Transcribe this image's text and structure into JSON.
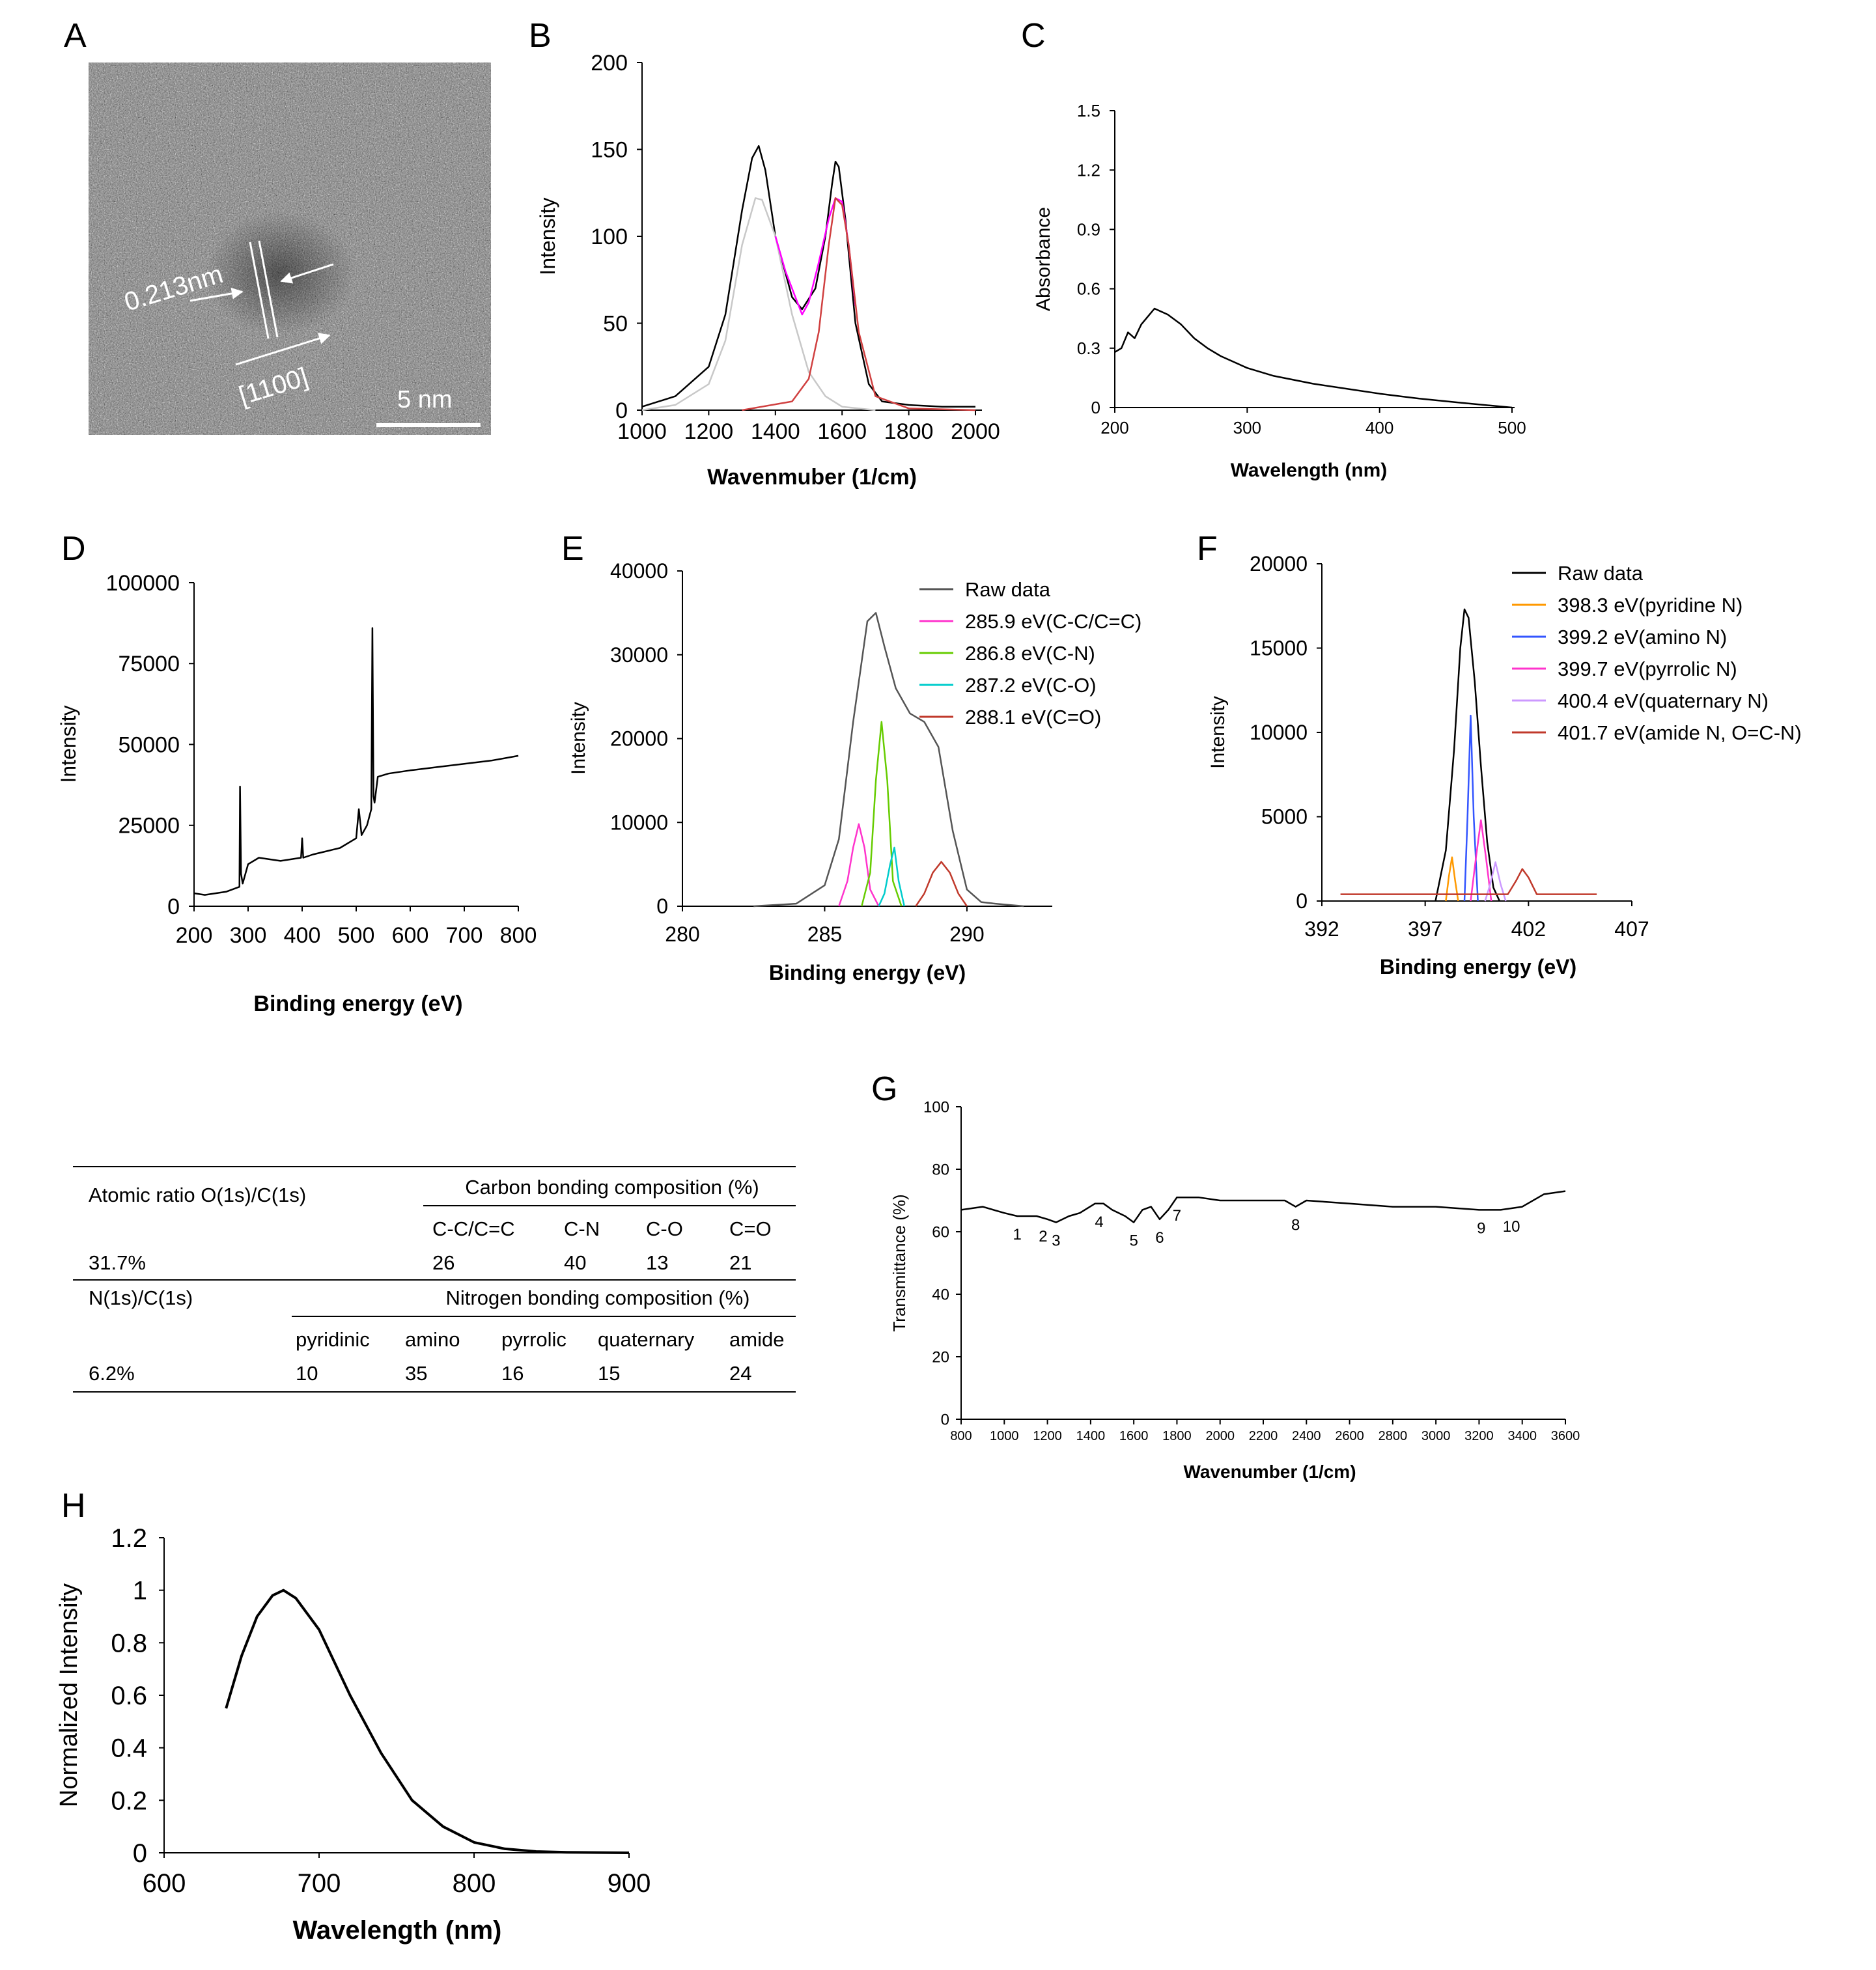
{
  "panel_letters": [
    "A",
    "B",
    "C",
    "D",
    "E",
    "F",
    "G",
    "H"
  ],
  "tem": {
    "spacing_label": "0.213nm",
    "direction_label": "[1100]",
    "scale_label": "5 nm"
  },
  "table": {
    "atomic_ratio_label": "Atomic ratio O(1s)/C(1s)",
    "carbon_header": "Carbon bonding composition (%)",
    "carbon_cols": [
      "C-C/C=C",
      "C-N",
      "C-O",
      "C=O"
    ],
    "atomic_ratio_value": "31.7%",
    "carbon_values": [
      "26",
      "40",
      "13",
      "21"
    ],
    "n_ratio_label": "N(1s)/C(1s)",
    "nitrogen_header": "Nitrogen bonding composition (%)",
    "nitrogen_cols": [
      "pyridinic",
      "amino",
      "pyrrolic",
      "quaternary",
      "amide"
    ],
    "n_ratio_value": "6.2%",
    "nitrogen_values": [
      "10",
      "35",
      "16",
      "15",
      "24"
    ]
  },
  "chart_data": [
    {
      "panel": "B",
      "type": "line",
      "xlabel": "Wavenmuber (1/cm)",
      "ylabel": "Intensity",
      "xlim": [
        1000,
        2000
      ],
      "ylim": [
        0,
        200
      ],
      "xticks": [
        1000,
        1200,
        1400,
        1600,
        1800,
        2000
      ],
      "yticks": [
        0,
        50,
        100,
        150,
        200
      ],
      "series": [
        {
          "color": "#000000",
          "x": [
            1000,
            1100,
            1200,
            1250,
            1300,
            1330,
            1350,
            1370,
            1400,
            1450,
            1480,
            1520,
            1550,
            1570,
            1580,
            1590,
            1610,
            1640,
            1680,
            1720,
            1800,
            1900,
            2000
          ],
          "y": [
            2,
            8,
            25,
            55,
            115,
            145,
            152,
            138,
            100,
            65,
            58,
            70,
            100,
            130,
            143,
            140,
            110,
            50,
            15,
            5,
            3,
            2,
            2
          ]
        },
        {
          "color": "#c8c8c8",
          "x": [
            1000,
            1100,
            1200,
            1250,
            1300,
            1340,
            1360,
            1400,
            1450,
            1500,
            1550,
            1600,
            1700
          ],
          "y": [
            0,
            3,
            15,
            40,
            95,
            122,
            121,
            100,
            55,
            22,
            8,
            2,
            0
          ]
        },
        {
          "color": "#ff00ff",
          "x": [
            1400,
            1430,
            1460,
            1480,
            1500,
            1530,
            1560,
            1580,
            1600,
            1620,
            1640
          ],
          "y": [
            100,
            80,
            65,
            55,
            62,
            85,
            110,
            122,
            120,
            95,
            60
          ]
        },
        {
          "color": "#d04040",
          "x": [
            1300,
            1450,
            1500,
            1530,
            1560,
            1580,
            1600,
            1620,
            1650,
            1700,
            1800,
            2000
          ],
          "y": [
            0,
            5,
            18,
            45,
            95,
            122,
            118,
            95,
            45,
            8,
            1,
            0
          ]
        }
      ]
    },
    {
      "panel": "C",
      "type": "line",
      "xlabel": "Wavelength (nm)",
      "ylabel": "Absorbance",
      "xlim": [
        200,
        500
      ],
      "ylim": [
        0,
        1.5
      ],
      "xticks": [
        200,
        300,
        400,
        500
      ],
      "yticks": [
        "0",
        "0.3",
        "0.6",
        "0.9",
        "1.2",
        "1.5"
      ],
      "series": [
        {
          "color": "#000000",
          "x": [
            200,
            205,
            210,
            215,
            220,
            225,
            230,
            240,
            250,
            260,
            270,
            280,
            300,
            320,
            350,
            380,
            400,
            430,
            460,
            500
          ],
          "y": [
            0.28,
            0.3,
            0.38,
            0.35,
            0.42,
            0.46,
            0.5,
            0.47,
            0.42,
            0.35,
            0.3,
            0.26,
            0.2,
            0.16,
            0.12,
            0.09,
            0.07,
            0.045,
            0.025,
            0.0
          ]
        }
      ]
    },
    {
      "panel": "D",
      "type": "line",
      "xlabel": "Binding energy (eV)",
      "ylabel": "Intensity",
      "xlim": [
        200,
        800
      ],
      "ylim": [
        0,
        100000
      ],
      "xticks": [
        200,
        300,
        400,
        500,
        600,
        700,
        800
      ],
      "yticks": [
        0,
        25000,
        50000,
        75000,
        100000
      ],
      "series": [
        {
          "color": "#000000",
          "x": [
            200,
            220,
            260,
            284,
            285,
            287,
            290,
            300,
            320,
            360,
            398,
            400,
            402,
            420,
            470,
            500,
            505,
            510,
            520,
            528,
            530,
            532,
            534,
            540,
            560,
            600,
            650,
            700,
            750,
            800
          ],
          "y": [
            4000,
            3500,
            4500,
            6000,
            37000,
            10000,
            7000,
            13000,
            15000,
            14000,
            15000,
            21000,
            15000,
            16000,
            18000,
            21000,
            30000,
            22000,
            25000,
            30000,
            86000,
            34000,
            32000,
            40000,
            41000,
            42000,
            43000,
            44000,
            45000,
            46500
          ]
        }
      ]
    },
    {
      "panel": "E",
      "type": "line",
      "xlabel": "Binding energy (eV)",
      "ylabel": "Intensity",
      "xlim": [
        280,
        293
      ],
      "ylim": [
        0,
        40000
      ],
      "xticks": [
        280,
        285,
        290
      ],
      "yticks": [
        0,
        10000,
        20000,
        30000,
        40000
      ],
      "series": [
        {
          "name": "Raw data",
          "color": "#555555",
          "x": [
            282.5,
            284,
            285,
            285.5,
            286,
            286.5,
            286.8,
            287.1,
            287.5,
            288,
            288.5,
            289,
            289.5,
            290,
            290.5,
            291,
            292
          ],
          "y": [
            0,
            300,
            2500,
            8000,
            22000,
            34000,
            35000,
            31000,
            26000,
            23000,
            22000,
            19000,
            9000,
            2000,
            500,
            300,
            0
          ]
        },
        {
          "name": "285.9 eV(C-C/C=C)",
          "color": "#ff33cc",
          "x": [
            285.5,
            285.8,
            286.0,
            286.2,
            286.4,
            286.6,
            286.9
          ],
          "y": [
            0,
            3000,
            7000,
            9800,
            7000,
            2000,
            0
          ]
        },
        {
          "name": "286.8 eV(C-N)",
          "color": "#66cc00",
          "x": [
            286.3,
            286.6,
            286.8,
            287.0,
            287.2,
            287.4,
            287.7
          ],
          "y": [
            0,
            4000,
            15000,
            22000,
            15000,
            3000,
            0
          ]
        },
        {
          "name": "287.2 eV(C-O)",
          "color": "#00cccc",
          "x": [
            286.9,
            287.1,
            287.3,
            287.45,
            287.6,
            287.8
          ],
          "y": [
            0,
            1500,
            5000,
            7000,
            3000,
            0
          ]
        },
        {
          "name": "288.1 eV(C=O)",
          "color": "#c0392b",
          "x": [
            288.2,
            288.5,
            288.8,
            289.1,
            289.4,
            289.7,
            290.0
          ],
          "y": [
            0,
            1500,
            4000,
            5300,
            4000,
            1500,
            0
          ]
        }
      ]
    },
    {
      "panel": "F",
      "type": "line",
      "xlabel": "Binding energy (eV)",
      "ylabel": "Intensity",
      "xlim": [
        392,
        407
      ],
      "ylim": [
        0,
        20000
      ],
      "xticks": [
        392,
        397,
        402,
        407
      ],
      "yticks": [
        0,
        5000,
        10000,
        15000,
        20000
      ],
      "series": [
        {
          "name": "Raw data",
          "color": "#000000",
          "x": [
            397.5,
            398,
            398.4,
            398.7,
            398.9,
            399.1,
            399.4,
            399.7,
            400.0,
            400.3,
            400.6
          ],
          "y": [
            0,
            3000,
            9000,
            15000,
            17300,
            16800,
            13000,
            8000,
            3500,
            800,
            0
          ]
        },
        {
          "name": "398.3 eV(pyridine N)",
          "color": "#ff9900",
          "x": [
            398.0,
            398.15,
            398.3,
            398.45,
            398.6
          ],
          "y": [
            0,
            1500,
            2600,
            1200,
            0
          ]
        },
        {
          "name": "399.2 eV(amino N)",
          "color": "#3355ff",
          "x": [
            398.9,
            399.05,
            399.2,
            399.35,
            399.55
          ],
          "y": [
            0,
            5000,
            11000,
            5000,
            0
          ]
        },
        {
          "name": "399.7 eV(pyrrolic N)",
          "color": "#ff33cc",
          "x": [
            399.2,
            399.45,
            399.7,
            399.95,
            400.2
          ],
          "y": [
            0,
            2500,
            4800,
            2500,
            0
          ]
        },
        {
          "name": "400.4 eV(quaternary N)",
          "color": "#cc99ff",
          "x": [
            399.9,
            400.15,
            400.4,
            400.65,
            400.9
          ],
          "y": [
            0,
            1000,
            2300,
            1000,
            0
          ]
        },
        {
          "name": "401.7 eV(amide N, O=C-N)",
          "color": "#c0392b",
          "x": [
            392.9,
            401.0,
            401.4,
            401.7,
            402.0,
            402.4,
            405.3
          ],
          "y": [
            400,
            400,
            1200,
            1900,
            1400,
            400,
            400
          ]
        }
      ]
    },
    {
      "panel": "G",
      "type": "line",
      "xlabel": "Wavenumber (1/cm)",
      "ylabel": "Transmittance (%)",
      "xlim": [
        800,
        3600
      ],
      "ylim": [
        0,
        100
      ],
      "xticks": [
        800,
        1000,
        1200,
        1400,
        1600,
        1800,
        2000,
        2200,
        2400,
        2600,
        2800,
        3000,
        3200,
        3400,
        3600
      ],
      "yticks": [
        0,
        20,
        40,
        60,
        80,
        100
      ],
      "peak_labels": [
        {
          "label": "1",
          "x": 1060
        },
        {
          "label": "2",
          "x": 1180
        },
        {
          "label": "3",
          "x": 1240
        },
        {
          "label": "4",
          "x": 1440
        },
        {
          "label": "5",
          "x": 1600
        },
        {
          "label": "6",
          "x": 1720
        },
        {
          "label": "7",
          "x": 1800
        },
        {
          "label": "8",
          "x": 2350
        },
        {
          "label": "9",
          "x": 3210
        },
        {
          "label": "10",
          "x": 3350
        }
      ],
      "series": [
        {
          "color": "#000000",
          "x": [
            800,
            900,
            1000,
            1060,
            1150,
            1200,
            1240,
            1300,
            1350,
            1420,
            1460,
            1500,
            1560,
            1600,
            1640,
            1680,
            1720,
            1760,
            1800,
            1900,
            2000,
            2200,
            2300,
            2350,
            2400,
            2600,
            2800,
            3000,
            3200,
            3300,
            3400,
            3500,
            3600
          ],
          "y": [
            67,
            68,
            66,
            65,
            65,
            64,
            63,
            65,
            66,
            69,
            69,
            67,
            65,
            63,
            67,
            68,
            64,
            67,
            71,
            71,
            70,
            70,
            70,
            68,
            70,
            69,
            68,
            68,
            67,
            67,
            68,
            72,
            73
          ]
        }
      ]
    },
    {
      "panel": "H",
      "type": "line",
      "xlabel": "Wavelength (nm)",
      "ylabel": "Normalized Intensity",
      "xlim": [
        600,
        900
      ],
      "ylim": [
        0,
        1.2
      ],
      "xticks": [
        600,
        700,
        800,
        900
      ],
      "yticks": [
        "0",
        "0.2",
        "0.4",
        "0.6",
        "0.8",
        "1",
        "1.2"
      ],
      "series": [
        {
          "color": "#000000",
          "x": [
            640,
            650,
            660,
            670,
            677,
            685,
            700,
            720,
            740,
            760,
            780,
            800,
            820,
            840,
            860,
            900
          ],
          "y": [
            0.55,
            0.75,
            0.9,
            0.98,
            1.0,
            0.97,
            0.85,
            0.6,
            0.38,
            0.2,
            0.1,
            0.04,
            0.015,
            0.005,
            0.002,
            0.0
          ]
        }
      ]
    }
  ]
}
